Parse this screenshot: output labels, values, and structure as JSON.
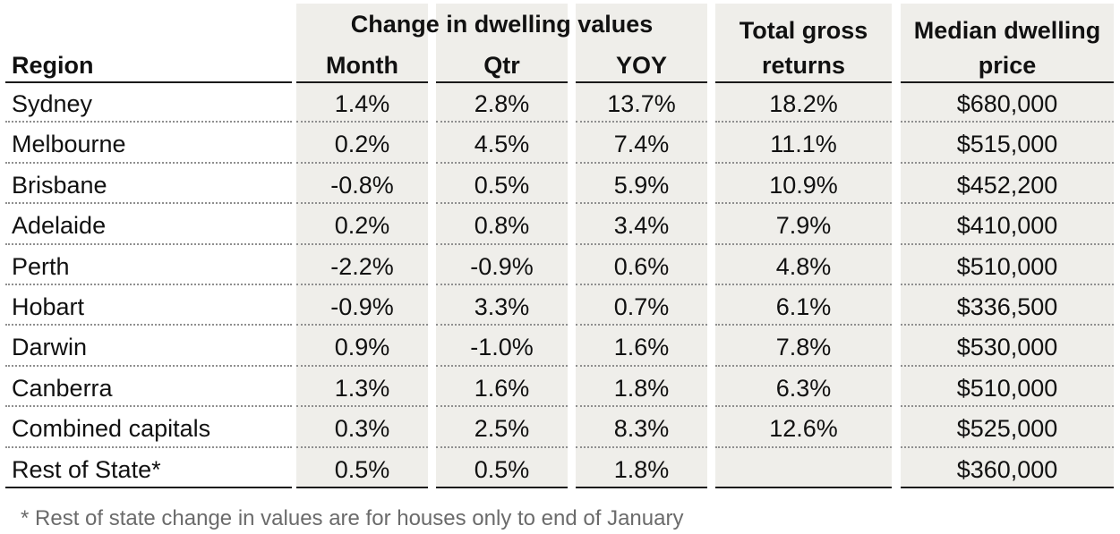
{
  "table": {
    "group_header": "Change in dwelling values",
    "headers": {
      "region": "Region",
      "month": "Month",
      "qtr": "Qtr",
      "yoy": "YOY",
      "total_line1": "Total gross",
      "total_line2": "returns",
      "median_line1": "Median dwelling",
      "median_line2": "price"
    },
    "rows": [
      {
        "region": "Sydney",
        "month": "1.4%",
        "qtr": "2.8%",
        "yoy": "13.7%",
        "total": "18.2%",
        "median": "$680,000"
      },
      {
        "region": "Melbourne",
        "month": "0.2%",
        "qtr": "4.5%",
        "yoy": "7.4%",
        "total": "11.1%",
        "median": "$515,000"
      },
      {
        "region": "Brisbane",
        "month": "-0.8%",
        "qtr": "0.5%",
        "yoy": "5.9%",
        "total": "10.9%",
        "median": "$452,200"
      },
      {
        "region": "Adelaide",
        "month": "0.2%",
        "qtr": "0.8%",
        "yoy": "3.4%",
        "total": "7.9%",
        "median": "$410,000"
      },
      {
        "region": "Perth",
        "month": "-2.2%",
        "qtr": "-0.9%",
        "yoy": "0.6%",
        "total": "4.8%",
        "median": "$510,000"
      },
      {
        "region": "Hobart",
        "month": "-0.9%",
        "qtr": "3.3%",
        "yoy": "0.7%",
        "total": "6.1%",
        "median": "$336,500"
      },
      {
        "region": "Darwin",
        "month": "0.9%",
        "qtr": "-1.0%",
        "yoy": "1.6%",
        "total": "7.8%",
        "median": "$530,000"
      },
      {
        "region": "Canberra",
        "month": "1.3%",
        "qtr": "1.6%",
        "yoy": "1.8%",
        "total": "6.3%",
        "median": "$510,000"
      },
      {
        "region": "Combined capitals",
        "month": "0.3%",
        "qtr": "2.5%",
        "yoy": "8.3%",
        "total": "12.6%",
        "median": "$525,000"
      },
      {
        "region": "Rest of State*",
        "month": "0.5%",
        "qtr": "0.5%",
        "yoy": "1.8%",
        "total": "",
        "median": "$360,000"
      }
    ]
  },
  "footnote": "* Rest of state change in values are for houses only to end of January",
  "colors": {
    "column_shading": "#efeeea",
    "text": "#111111",
    "footnote_text": "#6b6b6b",
    "row_separator": "#8f8f8f"
  }
}
